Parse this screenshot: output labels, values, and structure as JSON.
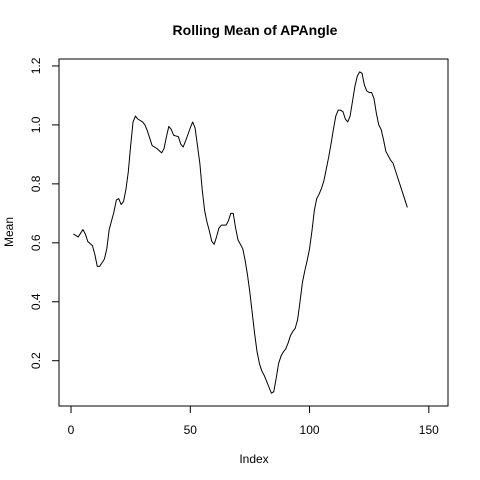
{
  "chart_data": {
    "type": "line",
    "title": "Rolling Mean of APAngle",
    "xlabel": "Index",
    "ylabel": "Mean",
    "xlim": [
      1,
      152
    ],
    "ylim": [
      0.09,
      1.18
    ],
    "x_ticks": [
      0,
      50,
      100,
      150
    ],
    "y_ticks": [
      0.2,
      0.4,
      0.6,
      0.8,
      1.0,
      1.2
    ],
    "x_tick_labels": [
      "0",
      "50",
      "100",
      "150"
    ],
    "y_tick_labels": [
      "0.2",
      "0.4",
      "0.6",
      "0.8",
      "1.0",
      "1.2"
    ],
    "grid": false,
    "series": [
      {
        "color": "#000000",
        "points": [
          [
            1,
            0.63
          ],
          [
            3,
            0.62
          ],
          [
            5,
            0.645
          ],
          [
            6,
            0.63
          ],
          [
            7,
            0.605
          ],
          [
            9,
            0.59
          ],
          [
            10,
            0.56
          ],
          [
            11,
            0.52
          ],
          [
            12,
            0.52
          ],
          [
            14,
            0.545
          ],
          [
            15,
            0.58
          ],
          [
            16,
            0.645
          ],
          [
            18,
            0.705
          ],
          [
            19,
            0.745
          ],
          [
            20,
            0.75
          ],
          [
            21,
            0.73
          ],
          [
            22,
            0.74
          ],
          [
            23,
            0.78
          ],
          [
            24,
            0.84
          ],
          [
            25,
            0.93
          ],
          [
            26,
            1.01
          ],
          [
            27,
            1.03
          ],
          [
            28,
            1.02
          ],
          [
            30,
            1.01
          ],
          [
            31,
            1.0
          ],
          [
            32,
            0.98
          ],
          [
            33,
            0.955
          ],
          [
            34,
            0.93
          ],
          [
            36,
            0.92
          ],
          [
            38,
            0.905
          ],
          [
            39,
            0.92
          ],
          [
            40,
            0.96
          ],
          [
            41,
            0.995
          ],
          [
            42,
            0.985
          ],
          [
            43,
            0.965
          ],
          [
            45,
            0.96
          ],
          [
            46,
            0.935
          ],
          [
            47,
            0.925
          ],
          [
            48,
            0.945
          ],
          [
            50,
            0.99
          ],
          [
            51,
            1.01
          ],
          [
            52,
            0.99
          ],
          [
            53,
            0.93
          ],
          [
            54,
            0.87
          ],
          [
            55,
            0.78
          ],
          [
            56,
            0.71
          ],
          [
            57,
            0.67
          ],
          [
            58,
            0.64
          ],
          [
            59,
            0.605
          ],
          [
            60,
            0.595
          ],
          [
            61,
            0.62
          ],
          [
            62,
            0.65
          ],
          [
            63,
            0.66
          ],
          [
            65,
            0.66
          ],
          [
            66,
            0.675
          ],
          [
            67,
            0.7
          ],
          [
            68,
            0.7
          ],
          [
            69,
            0.65
          ],
          [
            70,
            0.61
          ],
          [
            71,
            0.595
          ],
          [
            72,
            0.58
          ],
          [
            73,
            0.54
          ],
          [
            74,
            0.49
          ],
          [
            75,
            0.43
          ],
          [
            76,
            0.36
          ],
          [
            77,
            0.29
          ],
          [
            78,
            0.23
          ],
          [
            79,
            0.19
          ],
          [
            80,
            0.165
          ],
          [
            81,
            0.15
          ],
          [
            82,
            0.13
          ],
          [
            83,
            0.11
          ],
          [
            84,
            0.09
          ],
          [
            85,
            0.095
          ],
          [
            86,
            0.14
          ],
          [
            87,
            0.19
          ],
          [
            88,
            0.215
          ],
          [
            89,
            0.23
          ],
          [
            90,
            0.24
          ],
          [
            91,
            0.26
          ],
          [
            92,
            0.285
          ],
          [
            93,
            0.3
          ],
          [
            94,
            0.31
          ],
          [
            95,
            0.34
          ],
          [
            96,
            0.4
          ],
          [
            97,
            0.465
          ],
          [
            98,
            0.505
          ],
          [
            99,
            0.54
          ],
          [
            100,
            0.58
          ],
          [
            101,
            0.64
          ],
          [
            102,
            0.71
          ],
          [
            103,
            0.75
          ],
          [
            104,
            0.765
          ],
          [
            105,
            0.785
          ],
          [
            106,
            0.81
          ],
          [
            107,
            0.85
          ],
          [
            108,
            0.89
          ],
          [
            109,
            0.935
          ],
          [
            110,
            0.985
          ],
          [
            111,
            1.03
          ],
          [
            112,
            1.05
          ],
          [
            113,
            1.05
          ],
          [
            114,
            1.045
          ],
          [
            115,
            1.02
          ],
          [
            116,
            1.01
          ],
          [
            117,
            1.03
          ],
          [
            118,
            1.08
          ],
          [
            119,
            1.13
          ],
          [
            120,
            1.165
          ],
          [
            121,
            1.18
          ],
          [
            122,
            1.175
          ],
          [
            123,
            1.135
          ],
          [
            124,
            1.115
          ],
          [
            125,
            1.11
          ],
          [
            126,
            1.11
          ],
          [
            127,
            1.09
          ],
          [
            128,
            1.04
          ],
          [
            129,
            1.0
          ],
          [
            130,
            0.985
          ],
          [
            131,
            0.95
          ],
          [
            132,
            0.91
          ],
          [
            133,
            0.895
          ],
          [
            134,
            0.88
          ],
          [
            135,
            0.87
          ],
          [
            136,
            0.845
          ],
          [
            137,
            0.82
          ],
          [
            138,
            0.795
          ],
          [
            139,
            0.77
          ],
          [
            140,
            0.745
          ],
          [
            141,
            0.72
          ]
        ]
      }
    ]
  }
}
